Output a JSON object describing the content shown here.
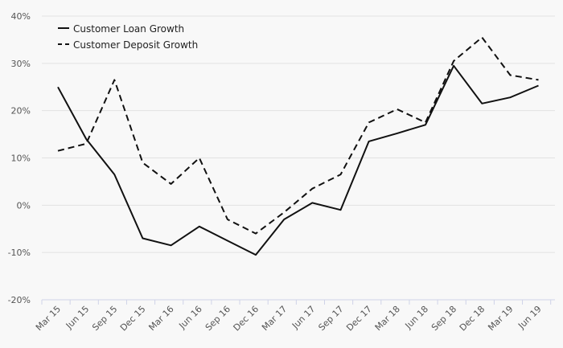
{
  "chart_data": {
    "type": "line",
    "title": "",
    "xlabel": "",
    "ylabel": "",
    "categories": [
      "Mar 15",
      "Jun 15",
      "Sep 15",
      "Dec 15",
      "Mar 16",
      "Jun 16",
      "Sep 16",
      "Dec 16",
      "Mar 17",
      "Jun 17",
      "Sep 17",
      "Dec 17",
      "Mar 18",
      "Jun 18",
      "Sep 18",
      "Dec 18",
      "Mar 19",
      "Jun 19"
    ],
    "y_ticks": [
      "-20%",
      "-10%",
      "0%",
      "10%",
      "20%",
      "30%",
      "40%"
    ],
    "ylim": [
      -20,
      40
    ],
    "grid": true,
    "legend_position": "top-left",
    "series": [
      {
        "name": "Customer Loan Growth",
        "style": "solid",
        "color": "#111111",
        "values": [
          25,
          14,
          6.5,
          -7,
          -8.5,
          -4.5,
          -7.5,
          -10.5,
          -3,
          0.5,
          -1,
          13.5,
          15.2,
          17,
          29.5,
          21.5,
          22.8,
          25.3
        ]
      },
      {
        "name": "Customer Deposit Growth",
        "style": "dashed",
        "color": "#111111",
        "values": [
          11.5,
          13,
          26.5,
          9,
          4.5,
          10,
          -3,
          -6,
          -1.5,
          3.5,
          6.5,
          17.5,
          20.3,
          17.5,
          30.5,
          35.5,
          27.5,
          26.5
        ]
      }
    ]
  }
}
